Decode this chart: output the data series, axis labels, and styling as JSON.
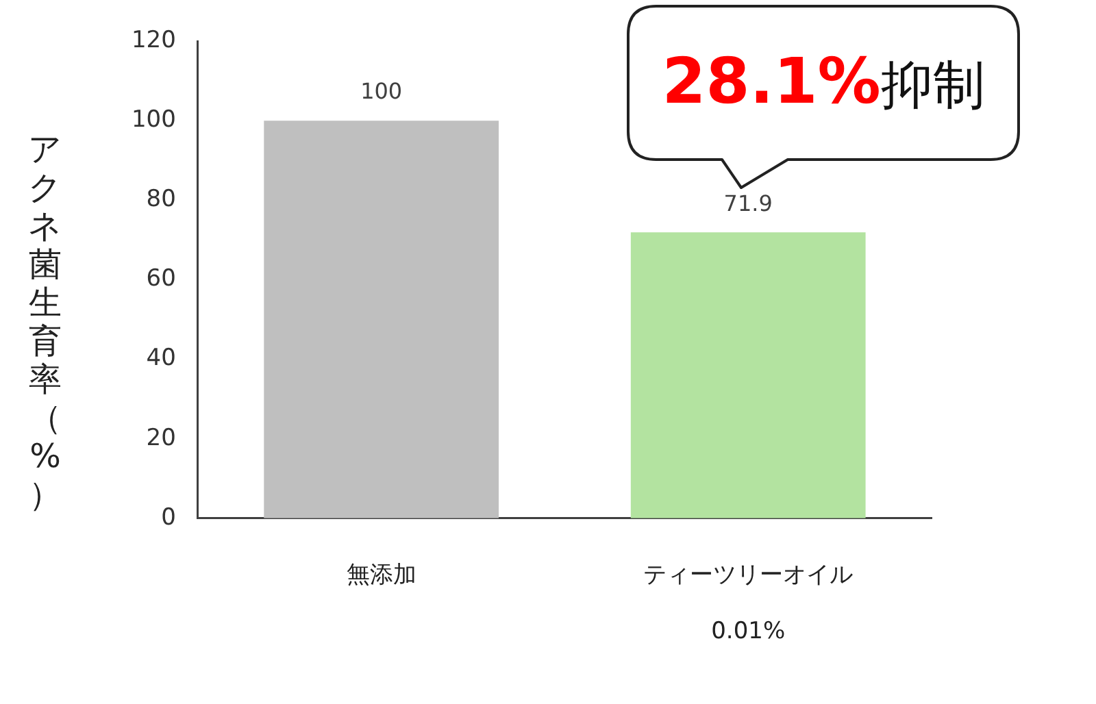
{
  "chart_data": {
    "type": "bar",
    "categories": [
      "無添加",
      "ティーツリーオイル\n0.01%"
    ],
    "values": [
      100,
      71.9
    ],
    "colors": [
      "#bfbfbf",
      "#b3e3a0"
    ],
    "ylabel": "アクネ菌生育率（%）",
    "ylim": [
      0,
      120
    ],
    "yticks": [
      0,
      20,
      40,
      60,
      80,
      100,
      120
    ],
    "grid": false,
    "legend": false,
    "data_labels": true,
    "annotations": [
      "28.1%抑制"
    ]
  }
}
